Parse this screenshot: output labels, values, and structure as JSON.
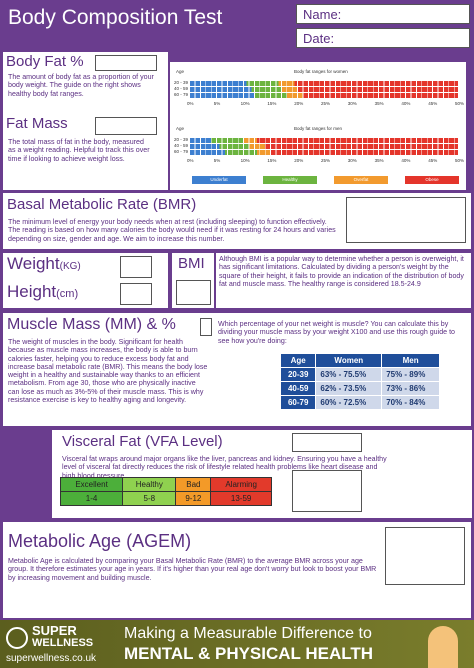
{
  "header": {
    "title": "Body Composition Test",
    "name_label": "Name:",
    "date_label": "Date:"
  },
  "body_fat": {
    "title": "Body Fat %",
    "text": "The amount of body fat as a proportion of your body weight. The guide on the right shows healthy body fat ranges."
  },
  "fat_mass": {
    "title": "Fat Mass",
    "text": "The total mass of fat in the body, measured as a weight reading. Helpful to track this over time if looking to achieve weight loss."
  },
  "fat_chart": {
    "age_label": "Age",
    "women_title": "Body fat ranges for women",
    "men_title": "Body fat ranges for men",
    "age_groups": [
      "20 - 39",
      "40 - 59",
      "60 - 79"
    ],
    "axis": [
      "0%",
      "5%",
      "10%",
      "15%",
      "20%",
      "25%",
      "30%",
      "35%",
      "40%",
      "45%",
      "50%"
    ],
    "legend": [
      "Underfat",
      "Healthy",
      "Overfat",
      "Obese"
    ]
  },
  "bmr": {
    "title": "Basal Metabolic Rate (BMR)",
    "text": "The minimum level of energy your body needs when at rest (including sleeping) to function effectively. The reading is based on how many calories the body would need if it was resting for 24 hours and varies depending on size, gender and age. We aim to increase this number."
  },
  "weight": {
    "label": "Weight",
    "unit": "(KG)"
  },
  "height": {
    "label": "Height",
    "unit": "(cm)"
  },
  "bmi": {
    "title": "BMI",
    "text": "Although BMI is a popular way to determine whether a person is overweight, it has significant limitations. Calculated by dividing a person's weight by the square of their height, it fails to provide an indication of the distribution of body fat and muscle mass. The healthy range is considered 18.5-24.9"
  },
  "muscle": {
    "title": "Muscle Mass (MM) & %",
    "text": "The weight of muscles in the body. Significant for health because as muscle mass increases, the body is able to burn calories faster, helping you to reduce excess body fat and increase basal metabolic rate (BMR). This means the body lose weight in a healthy and sustainable way thanks to an efficient metabolism. From age 30, those who are physically inactive can lose as much as 3%-5% of their muscle mass. This is why resistance exercise is key to healthy aging and longevity.",
    "question": "Which percentage of your net weight is muscle? You can calculate this by dividing your muscle mass by your weight X100 and use this rough guide to see how you're doing:",
    "table": {
      "header": [
        "Age",
        "Women",
        "Men"
      ],
      "rows": [
        [
          "20-39",
          "63% - 75.5%",
          "75% - 89%"
        ],
        [
          "40-59",
          "62% - 73.5%",
          "73% - 86%"
        ],
        [
          "60-79",
          "60% - 72.5%",
          "70% - 84%"
        ]
      ]
    }
  },
  "visceral": {
    "title": "Visceral Fat (VFA Level)",
    "text": "Visceral fat wraps around major organs like the liver, pancreas and kidney. Ensuring you have a healthy level of visceral fat directly reduces the risk of lifestyle related health problems like heart disease and high blood pressure",
    "table": {
      "header": [
        "Excellent",
        "Healthy",
        "Bad",
        "Alarming"
      ],
      "values": [
        "1-4",
        "5-8",
        "9-12",
        "13-59"
      ]
    }
  },
  "metabolic": {
    "title": "Metabolic Age (AGEM)",
    "text": "Metabolic Age is calculated by comparing your Basal Metabolic Rate (BMR) to the average BMR across your age group. It therefore estimates your age in years. If it's higher than your real age don't worry but look to boost your BMR by increasing movement and building muscle."
  },
  "footer": {
    "brand_top": "SUPER",
    "brand_bottom": "WELLNESS",
    "url": "superwellness.co.uk",
    "tagline": "Making a Measurable Difference to",
    "headline": "MENTAL & PHYSICAL HEALTH"
  }
}
